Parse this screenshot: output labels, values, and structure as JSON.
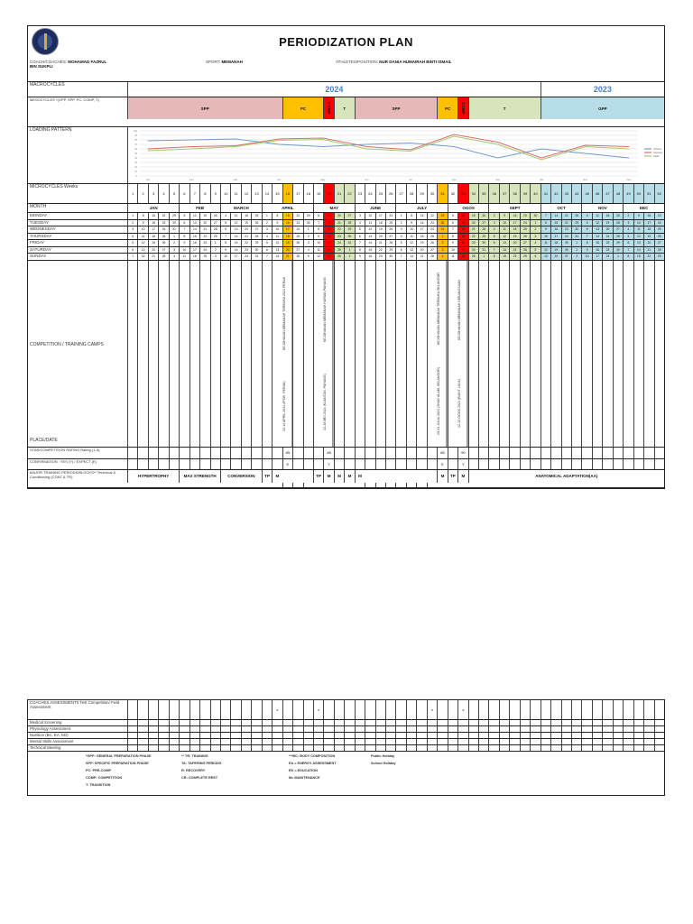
{
  "header": {
    "title": "PERIODIZATION PLAN",
    "coach_label": "COACH/COACHES:",
    "coach": "MOHAMAD FAZRUL BIN SUKPLI",
    "sport_label": "SPORT:",
    "sport": "MEMANAH",
    "athlete_label": "ATHLETES/POSITION:",
    "athlete": "NUR DANIA HUMAIRAH BINTI ISMAIL"
  },
  "labels": {
    "macrocycles": "MACROCYCLES",
    "mesocycles": "MESOCYCLES *",
    "mesocycles_note": "(GPP, SPP, PC, COMP, T)",
    "loading": "LOADING PATTERN",
    "microcycles": "MICROCYCLES Weeks",
    "month": "MONTH",
    "competition": "COMPETITION / TRAINING CAMPS",
    "place_date": "PLACE/DATE",
    "rating": "STAR/COMPETITION RATING Rating (1-5)",
    "confirmation": "CONFIRMATION : YES (Y) / EXPECT (E)",
    "major": "MAJOR TRAINING PERIODS/BLOCKS** Technical & Conditioning (CONT & TR)"
  },
  "macrocycles": [
    {
      "label": "2024",
      "from": 1,
      "to": 40
    },
    {
      "label": "2023",
      "from": 41,
      "to": 52
    }
  ],
  "mesocycles": [
    {
      "label": "SPP",
      "from": 1,
      "to": 15,
      "color": "#e6b8b7"
    },
    {
      "label": "PC",
      "from": 16,
      "to": 19,
      "color": "#ffc000"
    },
    {
      "label": "COMP",
      "from": 20,
      "to": 20,
      "color": "#ff0000"
    },
    {
      "label": "T",
      "from": 21,
      "to": 22,
      "color": "#d8e4bc"
    },
    {
      "label": "SPP",
      "from": 23,
      "to": 30,
      "color": "#e6b8b7"
    },
    {
      "label": "PC",
      "from": 31,
      "to": 32,
      "color": "#ffc000"
    },
    {
      "label": "COMP",
      "from": 33,
      "to": 33,
      "color": "#ff0000"
    },
    {
      "label": "T",
      "from": 34,
      "to": 40,
      "color": "#d8e4bc"
    },
    {
      "label": "GPP",
      "from": 41,
      "to": 52,
      "color": "#b7dde8"
    }
  ],
  "week_colors": {
    "16": "#ffc000",
    "20": "#ff0000",
    "21": "#d8e4bc",
    "22": "#d8e4bc",
    "31": "#ffc000",
    "33": "#ff0000",
    "34": "#d8e4bc",
    "35": "#d8e4bc",
    "36": "#d8e4bc",
    "37": "#d8e4bc",
    "38": "#d8e4bc",
    "39": "#d8e4bc",
    "40": "#d8e4bc",
    "41": "#b7dde8",
    "42": "#b7dde8",
    "43": "#b7dde8",
    "44": "#b7dde8",
    "45": "#b7dde8",
    "46": "#b7dde8",
    "47": "#b7dde8",
    "48": "#b7dde8",
    "49": "#b7dde8",
    "50": "#b7dde8",
    "51": "#b7dde8",
    "52": "#b7dde8"
  },
  "months": [
    {
      "label": "JAN",
      "from": 1,
      "to": 5
    },
    {
      "label": "FEB",
      "from": 6,
      "to": 9
    },
    {
      "label": "MARCH",
      "from": 10,
      "to": 13
    },
    {
      "label": "APRIL",
      "from": 14,
      "to": 18
    },
    {
      "label": "MAY",
      "from": 19,
      "to": 22
    },
    {
      "label": "JUNE",
      "from": 23,
      "to": 26
    },
    {
      "label": "JULY",
      "from": 27,
      "to": 31
    },
    {
      "label": "OGOS",
      "from": 32,
      "to": 35
    },
    {
      "label": "SEPT",
      "from": 36,
      "to": 40
    },
    {
      "label": "OCT",
      "from": 41,
      "to": 44
    },
    {
      "label": "NOV",
      "from": 45,
      "to": 48
    },
    {
      "label": "DEC",
      "from": 49,
      "to": 52
    }
  ],
  "days": [
    {
      "label": "MONDAY",
      "dates": "1 8 15 22 29 5 12 19 26 4 11 18 25 1 8 15 22 29 6 13 20 27 3 10 17 24 1 8 15 22 29 5 12 19 26 2 9 16 23 30 7 14 21 28 4 11 18 25 2 9 16 23"
    },
    {
      "label": "TUESDAY",
      "dates": "2 9 16 23 30 6 13 20 27 5 12 19 26 2 9 16 23 30 7 14 21 28 4 11 18 25 2 9 16 23 30 6 13 20 27 3 10 17 24 1 8 15 22 29 5 12 19 26 3 10 17 24"
    },
    {
      "label": "WEDNESDAY",
      "dates": "3 10 17 24 31 7 14 21 28 6 13 20 27 3 10 17 24 1 8 15 22 29 5 12 19 26 3 10 17 24 31 7 14 21 28 4 11 18 25 2 9 16 23 30 6 13 20 27 4 11 18 25"
    },
    {
      "label": "THURSDAY",
      "dates": "4 11 18 25 1 8 15 22 29 7 14 21 28 4 11 18 25 2 9 16 23 30 6 13 20 27 4 11 18 25 1 8 15 22 29 5 12 19 26 3 10 17 24 31 7 14 21 28 5 12 19 26"
    },
    {
      "label": "FRIDAY",
      "dates": "5 12 19 26 2 9 16 23 1 8 15 22 29 5 12 19 26 3 10 17 24 31 7 14 21 28 5 12 19 26 2 9 16 23 30 6 13 20 27 4 11 18 25 1 8 15 22 29 6 13 20 27"
    },
    {
      "label": "SATURDAY",
      "dates": "6 13 20 27 3 10 17 24 2 9 16 23 30 6 13 20 27 4 11 18 25 1 8 15 22 29 6 13 20 27 3 10 17 24 31 7 14 21 28 5 12 19 26 2 9 16 23 30 7 14 21 28"
    },
    {
      "label": "SUNDAY",
      "dates": "7 14 21 28 4 11 18 25 3 10 17 24 31 7 14 21 28 5 12 19 26 2 9 16 23 30 7 14 21 28 4 11 18 25 1 8 15 22 29 6 13 20 27 3 10 17 24 1 8 15 22 29"
    }
  ],
  "competitions": [
    {
      "week": 16,
      "name": "KEJOHANAN MEMANAH TERBUKA 2024 PERAK",
      "place": "13-14 APRIL 2024 (IPOH, PERAK)"
    },
    {
      "week": 20,
      "name": "KEJOHANAN MEMANAH HARIAN PAHANG",
      "place": "13-16 MEI 2024 (KUANTAN, PAHANG)"
    },
    {
      "week": 31,
      "name": "KEJOHANAN MEMANAH TERBUKA SELANGOR",
      "place": "29-31 JULAI 2024 (SHAH ALAM, SELANGOR)"
    },
    {
      "week": 33,
      "name": "KEJOHANAN MEMANAH KEBANGSAAN",
      "place": "12-13 OGOS 2024 (BUKIT JALIL)"
    }
  ],
  "ratings": {
    "16": "85",
    "20": "85",
    "31": "85",
    "33": "90"
  },
  "confirmations": {
    "16": "E",
    "20": "Y",
    "31": "E",
    "33": "Y"
  },
  "major_blocks": [
    {
      "label": "HYPERTROPHY",
      "from": 1,
      "to": 5
    },
    {
      "label": "MAX STRENGTH",
      "from": 6,
      "to": 9
    },
    {
      "label": "CONVERSION",
      "from": 10,
      "to": 13
    },
    {
      "label": "TP",
      "from": 14,
      "to": 14
    },
    {
      "label": "M",
      "from": 15,
      "to": 15
    },
    {
      "label": "TP",
      "from": 19,
      "to": 19
    },
    {
      "label": "M",
      "from": 20,
      "to": 20
    },
    {
      "label": "M",
      "from": 21,
      "to": 21
    },
    {
      "label": "M",
      "from": 22,
      "to": 22
    },
    {
      "label": "M",
      "from": 23,
      "to": 23
    },
    {
      "label": "M",
      "from": 31,
      "to": 31
    },
    {
      "label": "TP",
      "from": 32,
      "to": 32
    },
    {
      "label": "M",
      "from": 33,
      "to": 33
    },
    {
      "label": "ANATOMICAL ADAPTATION(AA)",
      "from": 34,
      "to": 52
    }
  ],
  "assessments": {
    "rows": [
      "COACHES ASSESSMENTS Test Competition/ Field Assessment",
      "Medical Screening",
      "Physiology Assessment",
      "Nutrition (BC, EA, ED)",
      "Mental Skills Assessment",
      "Technical Meeting"
    ],
    "marks": {
      "15": "x",
      "19": "x",
      "30": "x",
      "33": "x"
    }
  },
  "legend": [
    [
      "*GPP: GENERAL PREPARATION PHASE",
      "SPP: SPECIFIC PREPARATION PHASE",
      "PC: PRE-COMP",
      "COMP: COMPETITION",
      "T: TRANSITION"
    ],
    [
      "** TR: TRAINING",
      "TA: TAPERING PERIODS",
      "R: RECOVERY",
      "CR: COMPLETE REST"
    ],
    [
      "***BC: BODY COMPOSITION",
      "EA = ENERGY ASSESSMENT",
      "ED = EDUCATION",
      "M= MAINTENANCE"
    ],
    [
      "Public Holiday",
      "School Holiday"
    ]
  ],
  "chart_data": {
    "type": "line",
    "categories": [
      "Jan",
      "Feb",
      "Mar",
      "Apr",
      "May",
      "Jun",
      "Jul",
      "Ogo",
      "Sep",
      "Okt",
      "Nov",
      "Dec"
    ],
    "ylim": [
      0,
      100
    ],
    "grid": true,
    "legend": "right",
    "yticks": [
      0,
      10,
      20,
      30,
      40,
      50,
      60,
      70,
      80,
      90,
      100
    ],
    "series": [
      {
        "name": "Volume",
        "color": "#6f9bd1",
        "values": [
          78,
          80,
          82,
          70,
          65,
          70,
          73,
          65,
          40,
          60,
          50,
          40
        ]
      },
      {
        "name": "Intensity",
        "color": "#d26e6e",
        "values": [
          60,
          65,
          67,
          82,
          84,
          65,
          58,
          92,
          75,
          40,
          68,
          65
        ]
      },
      {
        "name": "Peak",
        "color": "#a6c86a",
        "values": [
          56,
          60,
          65,
          79,
          81,
          60,
          55,
          88,
          70,
          36,
          65,
          60
        ]
      }
    ]
  }
}
